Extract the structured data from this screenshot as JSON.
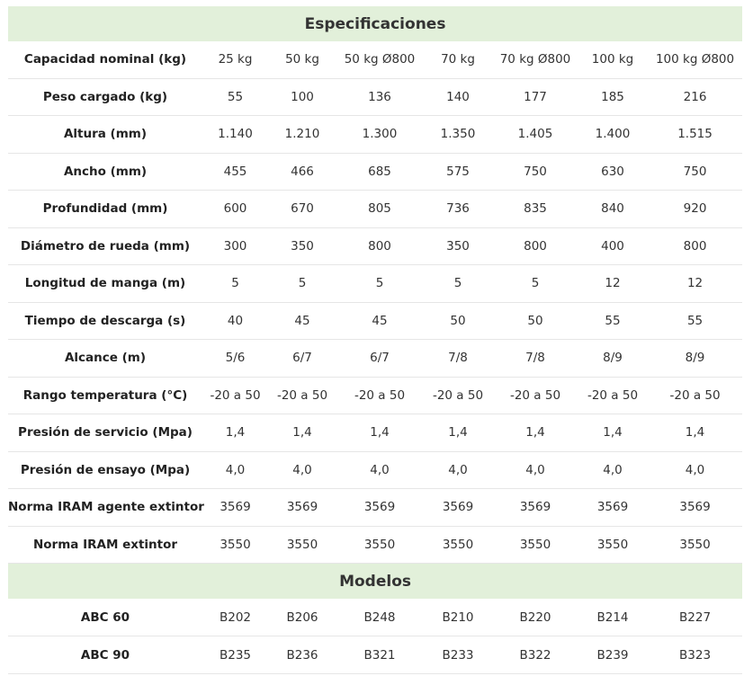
{
  "sections": [
    {
      "title": "Especificaciones",
      "rows": [
        {
          "label": "Capacidad nominal (kg)",
          "cells": [
            "25 kg",
            "50 kg",
            "50 kg Ø800",
            "70 kg",
            "70 kg Ø800",
            "100 kg",
            "100 kg Ø800"
          ]
        },
        {
          "label": "Peso cargado (kg)",
          "cells": [
            "55",
            "100",
            "136",
            "140",
            "177",
            "185",
            "216"
          ]
        },
        {
          "label": "Altura (mm)",
          "cells": [
            "1.140",
            "1.210",
            "1.300",
            "1.350",
            "1.405",
            "1.400",
            "1.515"
          ]
        },
        {
          "label": "Ancho (mm)",
          "cells": [
            "455",
            "466",
            "685",
            "575",
            "750",
            "630",
            "750"
          ]
        },
        {
          "label": "Profundidad (mm)",
          "cells": [
            "600",
            "670",
            "805",
            "736",
            "835",
            "840",
            "920"
          ]
        },
        {
          "label": "Diámetro de rueda (mm)",
          "cells": [
            "300",
            "350",
            "800",
            "350",
            "800",
            "400",
            "800"
          ]
        },
        {
          "label": "Longitud de manga (m)",
          "cells": [
            "5",
            "5",
            "5",
            "5",
            "5",
            "12",
            "12"
          ]
        },
        {
          "label": "Tiempo de descarga (s)",
          "cells": [
            "40",
            "45",
            "45",
            "50",
            "50",
            "55",
            "55"
          ]
        },
        {
          "label": "Alcance (m)",
          "cells": [
            "5/6",
            "6/7",
            "6/7",
            "7/8",
            "7/8",
            "8/9",
            "8/9"
          ]
        },
        {
          "label": "Rango temperatura (°C)",
          "cells": [
            "-20 a 50",
            "-20 a 50",
            "-20 a 50",
            "-20 a 50",
            "-20 a 50",
            "-20 a 50",
            "-20 a 50"
          ]
        },
        {
          "label": "Presión de servicio (Mpa)",
          "cells": [
            "1,4",
            "1,4",
            "1,4",
            "1,4",
            "1,4",
            "1,4",
            "1,4"
          ]
        },
        {
          "label": "Presión de ensayo (Mpa)",
          "cells": [
            "4,0",
            "4,0",
            "4,0",
            "4,0",
            "4,0",
            "4,0",
            "4,0"
          ]
        },
        {
          "label": "Norma IRAM agente extintor",
          "cells": [
            "3569",
            "3569",
            "3569",
            "3569",
            "3569",
            "3569",
            "3569"
          ]
        },
        {
          "label": "Norma IRAM extintor",
          "cells": [
            "3550",
            "3550",
            "3550",
            "3550",
            "3550",
            "3550",
            "3550"
          ]
        }
      ]
    },
    {
      "title": "Modelos",
      "rows": [
        {
          "label": "ABC 60",
          "cells": [
            "B202",
            "B206",
            "B248",
            "B210",
            "B220",
            "B214",
            "B227"
          ]
        },
        {
          "label": "ABC 90",
          "cells": [
            "B235",
            "B236",
            "B321",
            "B233",
            "B322",
            "B239",
            "B323"
          ]
        }
      ]
    }
  ]
}
